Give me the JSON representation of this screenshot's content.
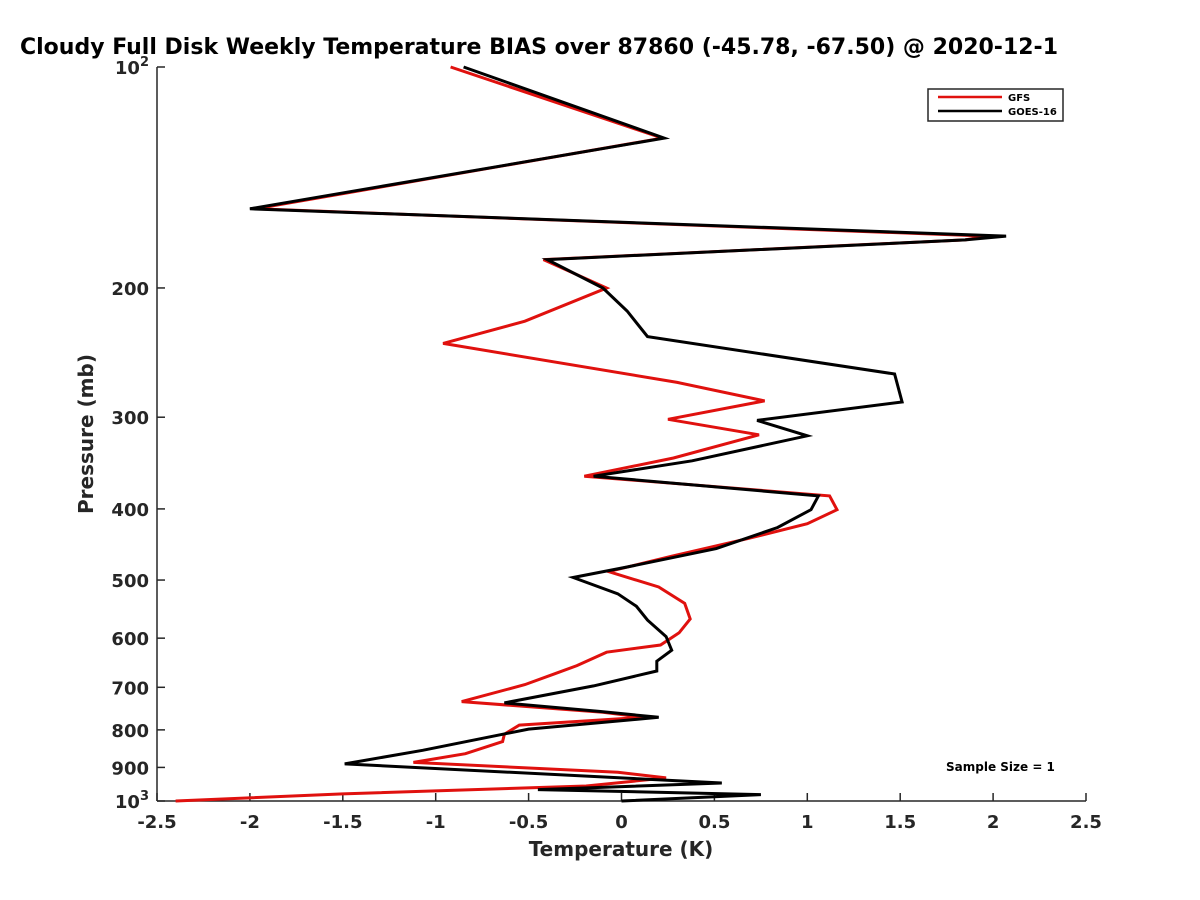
{
  "chart_data": {
    "type": "line",
    "title": "Cloudy Full Disk Weekly Temperature BIAS over 87860 (-45.78, -67.50) @ 2020-12-1",
    "xlabel": "Temperature (K)",
    "ylabel": "Pressure (mb)",
    "xlim": [
      -2.5,
      2.5
    ],
    "ylim": [
      100,
      1000
    ],
    "y_scale": "log",
    "y_reversed": true,
    "x_ticks": [
      "-2.5",
      "-2",
      "-1.5",
      "-1",
      "-0.5",
      "0",
      "0.5",
      "1",
      "1.5",
      "2",
      "2.5"
    ],
    "y_ticks": [
      {
        "value": 100,
        "base": "10",
        "exp": "2"
      },
      {
        "value": 200,
        "label": "200"
      },
      {
        "value": 300,
        "label": "300"
      },
      {
        "value": 400,
        "label": "400"
      },
      {
        "value": 500,
        "label": "500"
      },
      {
        "value": 600,
        "label": "600"
      },
      {
        "value": 700,
        "label": "700"
      },
      {
        "value": 800,
        "label": "800"
      },
      {
        "value": 900,
        "label": "900"
      },
      {
        "value": 1000,
        "base": "10",
        "exp": "3"
      }
    ],
    "legend_position": "top-right",
    "annotation": "Sample Size = 1",
    "series": [
      {
        "name": "GFS",
        "color": "#e0110e",
        "points": [
          [
            -0.92,
            100
          ],
          [
            0.22,
            125
          ],
          [
            -1.97,
            156
          ],
          [
            1.97,
            170
          ],
          [
            1.85,
            172
          ],
          [
            -0.42,
            183
          ],
          [
            -0.08,
            200
          ],
          [
            -0.52,
            222
          ],
          [
            -0.96,
            238
          ],
          [
            0.3,
            269
          ],
          [
            0.77,
            285
          ],
          [
            0.25,
            302
          ],
          [
            0.74,
            317
          ],
          [
            0.28,
            341
          ],
          [
            -0.2,
            361
          ],
          [
            1.12,
            384
          ],
          [
            1.16,
            401
          ],
          [
            1.0,
            419
          ],
          [
            0.68,
            439
          ],
          [
            0.27,
            464
          ],
          [
            -0.07,
            487
          ],
          [
            0.2,
            511
          ],
          [
            0.34,
            538
          ],
          [
            0.37,
            565
          ],
          [
            0.31,
            590
          ],
          [
            0.21,
            613
          ],
          [
            -0.08,
            627
          ],
          [
            -0.24,
            654
          ],
          [
            -0.36,
            671
          ],
          [
            -0.52,
            694
          ],
          [
            -0.86,
            732
          ],
          [
            -0.1,
            757
          ],
          [
            0.12,
            769
          ],
          [
            -0.55,
            788
          ],
          [
            -0.63,
            811
          ],
          [
            -0.64,
            830
          ],
          [
            -0.84,
            862
          ],
          [
            -1.12,
            886
          ],
          [
            -0.02,
            914
          ],
          [
            0.24,
            930
          ],
          [
            -0.19,
            954
          ],
          [
            -1.5,
            978
          ],
          [
            -2.4,
            1000
          ]
        ]
      },
      {
        "name": "GOES-16",
        "color": "#000000",
        "points": [
          [
            -0.85,
            100
          ],
          [
            0.23,
            125
          ],
          [
            -2.0,
            156
          ],
          [
            2.07,
            170
          ],
          [
            1.85,
            172
          ],
          [
            -0.4,
            183
          ],
          [
            -0.1,
            200
          ],
          [
            0.03,
            215
          ],
          [
            0.14,
            233
          ],
          [
            1.47,
            262
          ],
          [
            1.51,
            286
          ],
          [
            0.73,
            303
          ],
          [
            1.0,
            318
          ],
          [
            0.38,
            344
          ],
          [
            -0.15,
            361
          ],
          [
            1.06,
            384
          ],
          [
            1.02,
            401
          ],
          [
            0.84,
            424
          ],
          [
            0.51,
            453
          ],
          [
            0.03,
            480
          ],
          [
            -0.26,
            496
          ],
          [
            -0.02,
            522
          ],
          [
            0.08,
            543
          ],
          [
            0.14,
            567
          ],
          [
            0.24,
            597
          ],
          [
            0.27,
            623
          ],
          [
            0.19,
            645
          ],
          [
            0.19,
            665
          ],
          [
            -0.15,
            697
          ],
          [
            -0.63,
            735
          ],
          [
            -0.12,
            755
          ],
          [
            0.2,
            769
          ],
          [
            -0.5,
            798
          ],
          [
            -1.07,
            853
          ],
          [
            -1.49,
            890
          ],
          [
            0.54,
            945
          ],
          [
            -0.45,
            965
          ],
          [
            0.75,
            980
          ],
          [
            0.0,
            1000
          ]
        ]
      }
    ]
  }
}
